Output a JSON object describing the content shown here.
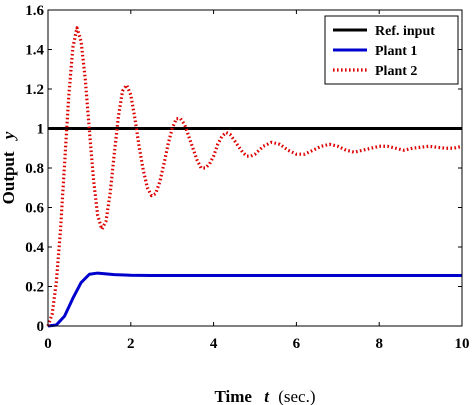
{
  "chart_data": {
    "type": "line",
    "title": "",
    "xlabel": "Time",
    "xlabel_var": "t",
    "xlabel_unit": "(sec.)",
    "ylabel": "Output",
    "ylabel_var": "y",
    "xlim": [
      0,
      10
    ],
    "ylim": [
      0,
      1.6
    ],
    "xticks": [
      0,
      2,
      4,
      6,
      8,
      10
    ],
    "xtick_labels": [
      "0",
      "2",
      "4",
      "6",
      "8",
      "10"
    ],
    "yticks": [
      0,
      0.2,
      0.4,
      0.6,
      0.8,
      1,
      1.2,
      1.4,
      1.6
    ],
    "ytick_labels": [
      "0",
      "0.2",
      "0.4",
      "0.6",
      "0.8",
      "1",
      "1.2",
      "1.4",
      "1.6"
    ],
    "grid": false,
    "legend_position": "top-right",
    "series": [
      {
        "name": "Ref. input",
        "color": "#000000",
        "style": "solid",
        "x": [
          0,
          10
        ],
        "y": [
          1,
          1
        ]
      },
      {
        "name": "Plant 1",
        "color": "#0000cc",
        "style": "solid",
        "x": [
          0,
          0.2,
          0.4,
          0.6,
          0.8,
          1.0,
          1.2,
          1.4,
          1.6,
          2.0,
          2.5,
          3.0,
          4.0,
          5.0,
          6.0,
          7.0,
          8.0,
          9.0,
          10.0
        ],
        "y": [
          0,
          0.005,
          0.05,
          0.14,
          0.22,
          0.262,
          0.268,
          0.264,
          0.26,
          0.257,
          0.256,
          0.256,
          0.256,
          0.256,
          0.256,
          0.256,
          0.256,
          0.256,
          0.256
        ]
      },
      {
        "name": "Plant 2",
        "color": "#dd0000",
        "style": "dotted",
        "x": [
          0,
          0.1,
          0.2,
          0.3,
          0.4,
          0.5,
          0.6,
          0.7,
          0.8,
          0.9,
          1.0,
          1.1,
          1.2,
          1.3,
          1.4,
          1.5,
          1.6,
          1.7,
          1.8,
          1.9,
          2.0,
          2.1,
          2.2,
          2.3,
          2.4,
          2.5,
          2.6,
          2.7,
          2.8,
          2.9,
          3.0,
          3.1,
          3.2,
          3.3,
          3.4,
          3.5,
          3.6,
          3.7,
          3.8,
          3.9,
          4.0,
          4.1,
          4.2,
          4.3,
          4.4,
          4.5,
          4.6,
          4.7,
          4.8,
          4.9,
          5.0,
          5.2,
          5.4,
          5.6,
          5.8,
          6.0,
          6.2,
          6.4,
          6.6,
          6.8,
          7.0,
          7.2,
          7.4,
          7.6,
          7.8,
          8.0,
          8.2,
          8.4,
          8.6,
          8.8,
          9.0,
          9.2,
          9.4,
          9.6,
          9.8,
          10.0
        ],
        "y": [
          0,
          0.06,
          0.22,
          0.48,
          0.82,
          1.16,
          1.41,
          1.51,
          1.44,
          1.25,
          0.99,
          0.74,
          0.56,
          0.49,
          0.53,
          0.67,
          0.87,
          1.06,
          1.19,
          1.22,
          1.17,
          1.05,
          0.91,
          0.79,
          0.7,
          0.66,
          0.67,
          0.73,
          0.82,
          0.92,
          1.0,
          1.05,
          1.05,
          1.02,
          0.96,
          0.9,
          0.84,
          0.8,
          0.8,
          0.82,
          0.86,
          0.92,
          0.96,
          0.98,
          0.97,
          0.94,
          0.91,
          0.88,
          0.86,
          0.86,
          0.87,
          0.91,
          0.93,
          0.92,
          0.89,
          0.87,
          0.87,
          0.89,
          0.91,
          0.92,
          0.91,
          0.89,
          0.88,
          0.89,
          0.9,
          0.91,
          0.91,
          0.9,
          0.89,
          0.9,
          0.905,
          0.91,
          0.905,
          0.9,
          0.9,
          0.91
        ]
      }
    ]
  }
}
